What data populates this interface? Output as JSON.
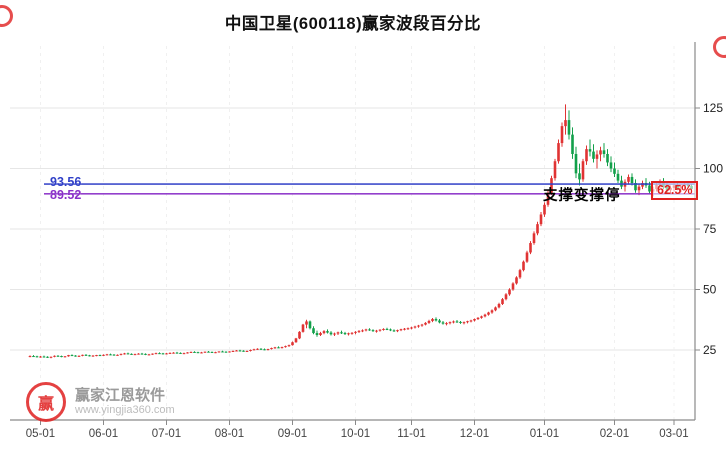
{
  "title": "中国卫星(600118)赢家波段百分比",
  "colors": {
    "accent_red": "#e02020",
    "line_blue": "#3040c8",
    "line_purple": "#8a30c8",
    "up": "#e03333",
    "down": "#12a04a"
  },
  "annotations": {
    "support_text": "支撑变撑停",
    "percent_label": "62.5%",
    "level_labels": [
      {
        "text": "93.56",
        "color": "#3040c8"
      },
      {
        "text": "89.52",
        "color": "#8a30c8"
      }
    ]
  },
  "watermark": {
    "logo_char": "赢",
    "brand": "赢家江恩软件",
    "url": "www.yingjia360.com"
  },
  "chart_data": {
    "type": "candlestick",
    "title": "中国卫星(600118)赢家波段百分比",
    "ylabel": "",
    "xlabel": "",
    "grid": true,
    "y_ticks": [
      25,
      50,
      75,
      100,
      125
    ],
    "y_range": [
      0,
      150
    ],
    "up_color": "#e03333",
    "down_color": "#12a04a",
    "x_ticks": [
      {
        "label": "05-01",
        "index": 3
      },
      {
        "label": "06-01",
        "index": 21
      },
      {
        "label": "07-01",
        "index": 39
      },
      {
        "label": "08-01",
        "index": 57
      },
      {
        "label": "09-01",
        "index": 75
      },
      {
        "label": "10-01",
        "index": 93
      },
      {
        "label": "11-01",
        "index": 109
      },
      {
        "label": "12-01",
        "index": 127
      },
      {
        "label": "01-01",
        "index": 147
      },
      {
        "label": "02-01",
        "index": 167
      },
      {
        "label": "03-01",
        "index": 184
      }
    ],
    "support_lines": [
      {
        "value": 93.56,
        "color": "#3040c8",
        "label": "93.56"
      },
      {
        "value": 89.52,
        "color": "#8a30c8",
        "label": "89.52"
      }
    ],
    "candles": [
      [
        22.3,
        22.8,
        22.0,
        22.5
      ],
      [
        22.5,
        22.9,
        22.2,
        22.4
      ],
      [
        22.4,
        22.6,
        21.9,
        22.1
      ],
      [
        22.1,
        22.5,
        21.8,
        22.3
      ],
      [
        22.3,
        22.7,
        22.1,
        22.2
      ],
      [
        22.2,
        22.4,
        21.7,
        21.9
      ],
      [
        21.9,
        22.3,
        21.6,
        22.2
      ],
      [
        22.2,
        22.8,
        22.0,
        22.6
      ],
      [
        22.6,
        22.9,
        22.3,
        22.5
      ],
      [
        22.5,
        22.7,
        22.0,
        22.2
      ],
      [
        22.2,
        22.5,
        21.9,
        22.4
      ],
      [
        22.4,
        23.0,
        22.2,
        22.9
      ],
      [
        22.9,
        23.2,
        22.5,
        22.7
      ],
      [
        22.7,
        22.9,
        22.2,
        22.4
      ],
      [
        22.4,
        22.8,
        22.1,
        22.6
      ],
      [
        22.6,
        23.1,
        22.4,
        23.0
      ],
      [
        23.0,
        23.3,
        22.6,
        22.8
      ],
      [
        22.8,
        23.0,
        22.3,
        22.5
      ],
      [
        22.5,
        22.9,
        22.2,
        22.7
      ],
      [
        22.7,
        23.0,
        22.4,
        22.9
      ],
      [
        22.9,
        23.1,
        22.5,
        22.8
      ],
      [
        22.8,
        23.2,
        22.5,
        23.0
      ],
      [
        23.0,
        23.4,
        22.8,
        23.2
      ],
      [
        23.2,
        23.5,
        22.9,
        23.1
      ],
      [
        23.1,
        23.3,
        22.7,
        22.9
      ],
      [
        22.9,
        23.2,
        22.6,
        23.0
      ],
      [
        23.0,
        23.5,
        22.8,
        23.4
      ],
      [
        23.4,
        23.8,
        23.1,
        23.6
      ],
      [
        23.6,
        23.9,
        23.2,
        23.4
      ],
      [
        23.4,
        23.6,
        23.0,
        23.2
      ],
      [
        23.2,
        23.5,
        22.9,
        23.3
      ],
      [
        23.3,
        23.7,
        23.1,
        23.5
      ],
      [
        23.5,
        23.8,
        23.2,
        23.4
      ],
      [
        23.4,
        23.6,
        22.9,
        23.1
      ],
      [
        23.1,
        23.4,
        22.8,
        23.2
      ],
      [
        23.2,
        23.6,
        23.0,
        23.5
      ],
      [
        23.5,
        23.9,
        23.3,
        23.7
      ],
      [
        23.7,
        24.0,
        23.4,
        23.6
      ],
      [
        23.6,
        23.8,
        23.2,
        23.4
      ],
      [
        23.4,
        23.8,
        23.2,
        23.6
      ],
      [
        23.6,
        24.0,
        23.4,
        23.8
      ],
      [
        23.8,
        24.1,
        23.5,
        23.9
      ],
      [
        23.9,
        24.2,
        23.6,
        23.8
      ],
      [
        23.8,
        24.0,
        23.4,
        23.6
      ],
      [
        23.6,
        23.9,
        23.3,
        23.7
      ],
      [
        23.7,
        24.1,
        23.5,
        24.0
      ],
      [
        24.0,
        24.4,
        23.8,
        24.2
      ],
      [
        24.2,
        24.5,
        23.9,
        24.1
      ],
      [
        24.1,
        24.3,
        23.7,
        23.9
      ],
      [
        23.9,
        24.2,
        23.6,
        24.0
      ],
      [
        24.0,
        24.4,
        23.8,
        24.3
      ],
      [
        24.3,
        24.6,
        24.0,
        24.2
      ],
      [
        24.2,
        24.4,
        23.8,
        24.0
      ],
      [
        24.0,
        24.3,
        23.7,
        24.1
      ],
      [
        24.1,
        24.5,
        23.9,
        24.4
      ],
      [
        24.4,
        24.7,
        24.1,
        24.3
      ],
      [
        24.3,
        24.5,
        23.9,
        24.1
      ],
      [
        24.1,
        24.5,
        23.9,
        24.4
      ],
      [
        24.4,
        24.8,
        24.2,
        24.6
      ],
      [
        24.6,
        25.0,
        24.4,
        24.8
      ],
      [
        24.8,
        25.1,
        24.5,
        24.7
      ],
      [
        24.7,
        24.9,
        24.3,
        24.5
      ],
      [
        24.5,
        24.8,
        24.2,
        24.6
      ],
      [
        24.6,
        25.2,
        24.4,
        25.0
      ],
      [
        25.0,
        25.5,
        24.8,
        25.3
      ],
      [
        25.3,
        25.7,
        25.0,
        25.5
      ],
      [
        25.5,
        25.8,
        25.1,
        25.3
      ],
      [
        25.3,
        25.6,
        24.9,
        25.1
      ],
      [
        25.1,
        25.5,
        24.8,
        25.4
      ],
      [
        25.4,
        26.0,
        25.2,
        25.8
      ],
      [
        25.8,
        26.3,
        25.5,
        26.1
      ],
      [
        26.1,
        26.5,
        25.8,
        26.0
      ],
      [
        26.0,
        26.4,
        25.6,
        26.2
      ],
      [
        26.2,
        26.8,
        26.0,
        26.6
      ],
      [
        26.6,
        27.2,
        26.3,
        27.0
      ],
      [
        27.0,
        28.5,
        26.8,
        28.2
      ],
      [
        28.2,
        30.0,
        28.0,
        29.8
      ],
      [
        29.8,
        32.8,
        29.5,
        32.5
      ],
      [
        32.5,
        35.8,
        32.2,
        35.5
      ],
      [
        35.5,
        37.5,
        34.0,
        36.8
      ],
      [
        36.8,
        37.2,
        33.5,
        34.0
      ],
      [
        34.0,
        34.8,
        31.5,
        32.0
      ],
      [
        32.0,
        33.0,
        30.5,
        31.2
      ],
      [
        31.2,
        32.5,
        30.8,
        32.0
      ],
      [
        32.0,
        33.2,
        31.5,
        32.8
      ],
      [
        32.8,
        33.5,
        31.8,
        32.2
      ],
      [
        32.2,
        32.8,
        31.0,
        31.5
      ],
      [
        31.5,
        32.2,
        30.8,
        31.8
      ],
      [
        31.8,
        32.6,
        31.2,
        32.3
      ],
      [
        32.3,
        33.0,
        31.6,
        32.0
      ],
      [
        32.0,
        32.5,
        31.2,
        31.6
      ],
      [
        31.6,
        32.2,
        31.0,
        31.9
      ],
      [
        31.9,
        32.4,
        31.3,
        32.1
      ],
      [
        32.1,
        32.8,
        31.5,
        32.5
      ],
      [
        32.5,
        33.2,
        32.0,
        32.9
      ],
      [
        32.9,
        33.5,
        32.4,
        33.1
      ],
      [
        33.1,
        33.8,
        32.7,
        33.5
      ],
      [
        33.5,
        34.0,
        32.9,
        33.2
      ],
      [
        33.2,
        33.6,
        32.5,
        32.8
      ],
      [
        32.8,
        33.3,
        32.2,
        33.0
      ],
      [
        33.0,
        33.6,
        32.6,
        33.4
      ],
      [
        33.4,
        34.0,
        33.0,
        33.7
      ],
      [
        33.7,
        34.2,
        33.2,
        33.5
      ],
      [
        33.5,
        33.9,
        32.8,
        33.1
      ],
      [
        33.1,
        33.5,
        32.5,
        32.9
      ],
      [
        32.9,
        33.4,
        32.4,
        33.2
      ],
      [
        33.2,
        33.8,
        32.8,
        33.6
      ],
      [
        33.6,
        34.1,
        33.1,
        33.8
      ],
      [
        33.8,
        34.3,
        33.3,
        34.0
      ],
      [
        34.0,
        34.6,
        33.5,
        34.3
      ],
      [
        34.3,
        35.0,
        33.9,
        34.7
      ],
      [
        34.7,
        35.4,
        34.2,
        35.1
      ],
      [
        35.1,
        35.8,
        34.6,
        35.5
      ],
      [
        35.5,
        36.5,
        35.2,
        36.2
      ],
      [
        36.2,
        37.5,
        35.8,
        37.0
      ],
      [
        37.0,
        38.2,
        36.5,
        37.8
      ],
      [
        37.8,
        38.5,
        36.8,
        37.2
      ],
      [
        37.2,
        37.8,
        36.0,
        36.4
      ],
      [
        36.4,
        37.0,
        35.5,
        35.9
      ],
      [
        35.9,
        36.5,
        35.2,
        36.1
      ],
      [
        36.1,
        36.8,
        35.6,
        36.5
      ],
      [
        36.5,
        37.2,
        36.0,
        36.8
      ],
      [
        36.8,
        37.4,
        36.2,
        36.6
      ],
      [
        36.6,
        37.0,
        35.8,
        36.2
      ],
      [
        36.2,
        36.8,
        35.6,
        36.5
      ],
      [
        36.5,
        37.1,
        36.0,
        36.9
      ],
      [
        36.9,
        37.5,
        36.4,
        37.2
      ],
      [
        37.2,
        38.0,
        36.8,
        37.8
      ],
      [
        37.8,
        38.6,
        37.4,
        38.3
      ],
      [
        38.3,
        39.2,
        37.9,
        38.9
      ],
      [
        38.9,
        40.0,
        38.5,
        39.6
      ],
      [
        39.6,
        40.8,
        39.2,
        40.5
      ],
      [
        40.5,
        41.8,
        40.0,
        41.4
      ],
      [
        41.4,
        43.0,
        41.0,
        42.6
      ],
      [
        42.6,
        44.5,
        42.2,
        44.0
      ],
      [
        44.0,
        46.5,
        43.6,
        46.0
      ],
      [
        46.0,
        48.5,
        45.5,
        48.0
      ],
      [
        48.0,
        50.5,
        47.4,
        50.0
      ],
      [
        50.0,
        53.0,
        49.5,
        52.5
      ],
      [
        52.5,
        55.5,
        52.0,
        55.0
      ],
      [
        55.0,
        58.5,
        54.4,
        58.0
      ],
      [
        58.0,
        62.0,
        57.5,
        61.5
      ],
      [
        61.5,
        66.0,
        61.0,
        65.3
      ],
      [
        65.3,
        70.0,
        64.6,
        69.2
      ],
      [
        69.2,
        74.0,
        68.5,
        73.2
      ],
      [
        73.2,
        78.0,
        72.4,
        77.0
      ],
      [
        77.0,
        82.0,
        76.2,
        81.0
      ],
      [
        81.0,
        86.0,
        80.0,
        85.0
      ],
      [
        85.0,
        91.0,
        84.2,
        90.0
      ],
      [
        90.0,
        97.0,
        89.0,
        96.0
      ],
      [
        96.0,
        104.0,
        95.0,
        103.0
      ],
      [
        103.0,
        112.0,
        102.0,
        110.5
      ],
      [
        110.5,
        119.0,
        109.0,
        117.5
      ],
      [
        117.5,
        126.5,
        114.0,
        120.0
      ],
      [
        120.0,
        124.0,
        112.0,
        114.0
      ],
      [
        114.0,
        117.0,
        104.0,
        106.0
      ],
      [
        106.0,
        109.0,
        96.0,
        98.0
      ],
      [
        98.0,
        102.0,
        93.0,
        95.5
      ],
      [
        95.5,
        104.0,
        94.5,
        103.0
      ],
      [
        103.0,
        109.5,
        101.5,
        108.0
      ],
      [
        108.0,
        112.0,
        105.0,
        107.0
      ],
      [
        107.0,
        110.0,
        102.5,
        104.0
      ],
      [
        104.0,
        107.5,
        100.0,
        105.8
      ],
      [
        105.8,
        109.0,
        103.0,
        107.5
      ],
      [
        107.5,
        110.5,
        104.5,
        106.0
      ],
      [
        106.0,
        108.0,
        101.0,
        102.5
      ],
      [
        102.5,
        105.0,
        98.5,
        100.0
      ],
      [
        100.0,
        102.5,
        96.5,
        97.8
      ],
      [
        97.8,
        99.5,
        94.0,
        95.0
      ],
      [
        95.0,
        97.0,
        91.5,
        92.5
      ],
      [
        92.5,
        95.5,
        90.5,
        94.5
      ],
      [
        94.5,
        97.5,
        93.5,
        96.5
      ],
      [
        96.5,
        98.0,
        93.0,
        94.0
      ],
      [
        94.0,
        95.5,
        90.0,
        91.0
      ],
      [
        91.0,
        93.5,
        89.0,
        92.5
      ],
      [
        92.5,
        95.0,
        91.5,
        94.0
      ],
      [
        94.0,
        96.0,
        92.0,
        93.0
      ],
      [
        93.0,
        94.5,
        89.5,
        90.5
      ],
      [
        90.5,
        92.5,
        88.5,
        91.5
      ],
      [
        91.5,
        94.0,
        90.5,
        93.2
      ],
      [
        93.2,
        95.5,
        92.0,
        94.5
      ],
      [
        94.5,
        96.0,
        91.5,
        92.5
      ],
      [
        92.5,
        94.0,
        90.0,
        91.0
      ],
      [
        91.0,
        93.0,
        89.5,
        92.0
      ],
      [
        92.0,
        94.0,
        90.5,
        93.0
      ],
      [
        93.0,
        94.5,
        91.0,
        91.8
      ],
      [
        91.8,
        93.5,
        90.2,
        92.6
      ],
      [
        92.6,
        94.2,
        91.4,
        93.4
      ],
      [
        93.4,
        94.8,
        92.0,
        92.8
      ],
      [
        92.8,
        93.8,
        90.8,
        91.5
      ]
    ]
  }
}
